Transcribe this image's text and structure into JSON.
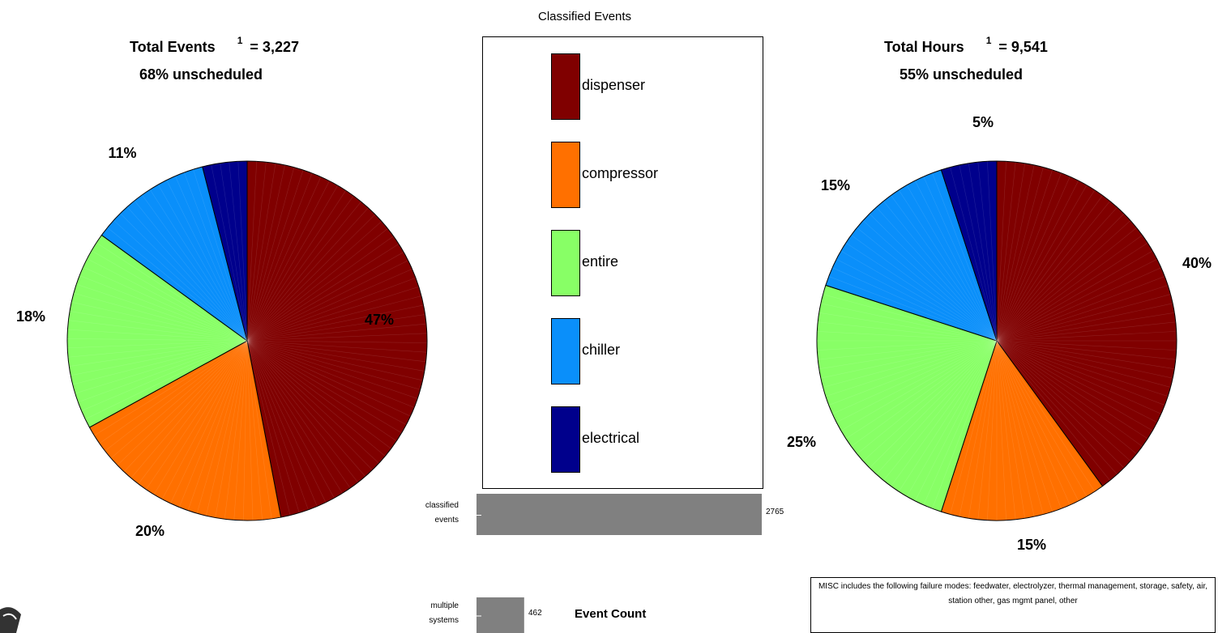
{
  "legend": {
    "title": "Classified Events",
    "items": [
      {
        "label": "dispenser",
        "color": "#800000"
      },
      {
        "label": "compressor",
        "color": "#ff7000"
      },
      {
        "label": "entire",
        "color": "#88ff66"
      },
      {
        "label": "chiller",
        "color": "#0a8ffa"
      },
      {
        "label": "electrical",
        "color": "#00008c"
      }
    ]
  },
  "left_title": {
    "prefix": "Total Events",
    "sup": "1",
    "suffix": "= 3,227",
    "line2": "68% unscheduled"
  },
  "right_title": {
    "prefix": "Total Hours",
    "sup": "1",
    "suffix": "= 9,541",
    "line2": "55% unscheduled"
  },
  "bar_axis_label": "Event Count",
  "note": "MISC includes the following failure modes: feedwater, electrolyzer, thermal management, storage, safety, air, station other, gas mgmt panel, other",
  "chart_data": [
    {
      "type": "pie",
      "title": "Total Events = 3,227",
      "subtitle": "68% unscheduled",
      "categories": [
        "dispenser",
        "compressor",
        "entire",
        "chiller",
        "electrical"
      ],
      "values": [
        47,
        20,
        18,
        11,
        4
      ],
      "labels": [
        "47%",
        "20%",
        "18%",
        "11%",
        ""
      ],
      "colors": [
        "#800000",
        "#ff7000",
        "#88ff66",
        "#0a8ffa",
        "#00008c"
      ]
    },
    {
      "type": "pie",
      "title": "Total Hours = 9,541",
      "subtitle": "55% unscheduled",
      "categories": [
        "dispenser",
        "compressor",
        "entire",
        "chiller",
        "electrical"
      ],
      "values": [
        40,
        15,
        25,
        15,
        5
      ],
      "labels": [
        "40%",
        "15%",
        "25%",
        "15%",
        "5%"
      ],
      "colors": [
        "#800000",
        "#ff7000",
        "#88ff66",
        "#0a8ffa",
        "#00008c"
      ]
    },
    {
      "type": "bar",
      "orientation": "horizontal",
      "xlabel": "Event Count",
      "categories": [
        "classified events",
        "multiple systems"
      ],
      "category_lines": [
        [
          "classified",
          "events"
        ],
        [
          "multiple",
          "systems"
        ]
      ],
      "values": [
        2765,
        462
      ],
      "value_labels": [
        "2765",
        "462"
      ],
      "color": "#808080"
    }
  ]
}
